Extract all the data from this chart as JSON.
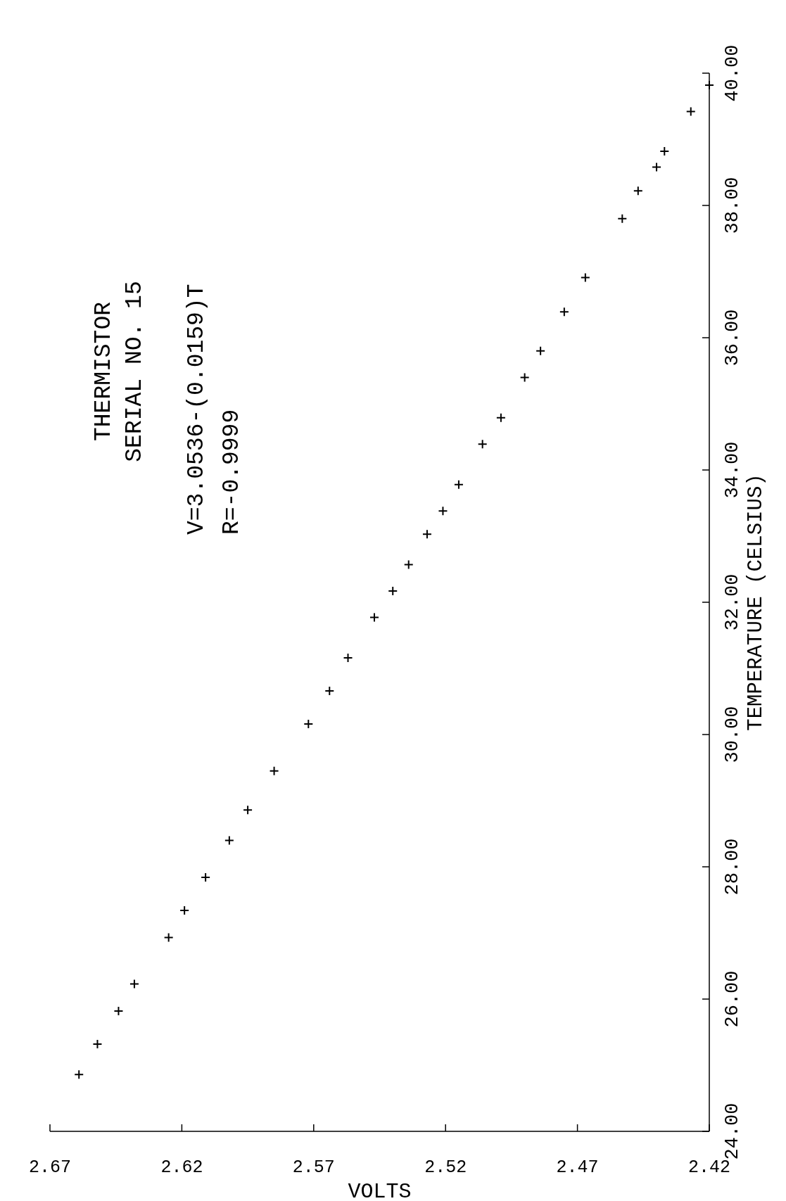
{
  "chart_data": {
    "type": "scatter",
    "title": "THERMISTOR",
    "subtitle": "SERIAL NO. 15",
    "xlabel": "VOLTS",
    "ylabel": "TEMPERATURE (CELSIUS)",
    "annotations": [
      "V=3.0536-(0.0159)T",
      "R=-0.9999"
    ],
    "x": [
      2.659,
      2.652,
      2.644,
      2.638,
      2.625,
      2.619,
      2.611,
      2.602,
      2.595,
      2.585,
      2.572,
      2.564,
      2.557,
      2.547,
      2.54,
      2.534,
      2.527,
      2.521,
      2.515,
      2.506,
      2.499,
      2.49,
      2.484,
      2.475,
      2.467,
      2.453,
      2.447,
      2.44,
      2.437,
      2.427,
      2.42
    ],
    "values": [
      24.86,
      25.32,
      25.82,
      26.23,
      26.93,
      27.34,
      27.84,
      28.4,
      28.86,
      29.45,
      30.16,
      30.66,
      31.16,
      31.77,
      32.17,
      32.57,
      33.03,
      33.38,
      33.78,
      34.39,
      34.79,
      35.4,
      35.8,
      36.39,
      36.91,
      37.8,
      38.22,
      38.58,
      38.82,
      39.42,
      39.82
    ],
    "color": "#000000",
    "marker": "cross",
    "ylim": [
      24,
      40
    ],
    "yticks": [
      {
        "value": 24,
        "label": "24.00"
      },
      {
        "value": 26,
        "label": "26.00"
      },
      {
        "value": 28,
        "label": "28.00"
      },
      {
        "value": 30,
        "label": "30.00"
      },
      {
        "value": 32,
        "label": "32.00"
      },
      {
        "value": 34,
        "label": "34.00"
      },
      {
        "value": 36,
        "label": "36.00"
      },
      {
        "value": 38,
        "label": "38.00"
      },
      {
        "value": 40,
        "label": "40.00"
      }
    ],
    "xlim": [
      2.67,
      2.42
    ],
    "xticks": [
      2.67,
      2.62,
      2.57,
      2.52,
      2.47,
      2.42
    ]
  }
}
